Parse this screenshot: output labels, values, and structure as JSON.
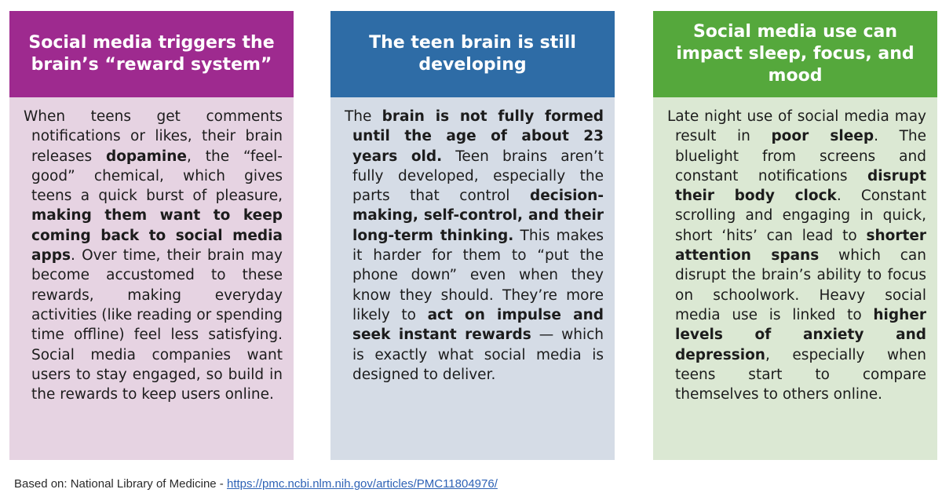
{
  "panels": [
    {
      "title": "Social media triggers the brain’s “reward system”",
      "header_color": "#9e2a8f",
      "body_color": "#e6d3e2",
      "segments": [
        {
          "text": "When teens get comments notifications or likes, their brain releases ",
          "bold": false
        },
        {
          "text": "dopamine",
          "bold": true
        },
        {
          "text": ", the “feel-good” chemical, which gives teens a quick burst of pleasure, ",
          "bold": false
        },
        {
          "text": "making them want to keep coming back to social media apps",
          "bold": true
        },
        {
          "text": ". Over time, their brain may become accustomed to these rewards, making everyday activities (like reading or spending time offline) feel less satisfying. Social media companies want users to stay engaged, so build in the rewards to keep users online.",
          "bold": false
        }
      ]
    },
    {
      "title": "The teen brain is still developing",
      "header_color": "#2e6ca6",
      "body_color": "#d5dce6",
      "segments": [
        {
          "text": "The ",
          "bold": false
        },
        {
          "text": "brain is not fully formed until the age of about 23 years old.",
          "bold": true
        },
        {
          "text": " Teen brains aren’t fully developed, especially the parts that control ",
          "bold": false
        },
        {
          "text": "decision-making, self-control, and their long-term thinking.",
          "bold": true
        },
        {
          "text": " This makes it harder for them to “put the phone down” even when they know they should. They’re more likely to ",
          "bold": false
        },
        {
          "text": "act on impulse and seek instant rewards",
          "bold": true
        },
        {
          "text": " — which is exactly what social media is designed to deliver.",
          "bold": false
        }
      ]
    },
    {
      "title": "Social media use can impact sleep, focus, and mood",
      "header_color": "#55a83c",
      "body_color": "#dbe8d3",
      "segments": [
        {
          "text": "Late night use of social media may result in ",
          "bold": false
        },
        {
          "text": "poor sleep",
          "bold": true
        },
        {
          "text": ". The bluelight from screens and constant notifications ",
          "bold": false
        },
        {
          "text": "disrupt their body clock",
          "bold": true
        },
        {
          "text": ". Constant scrolling and engaging in quick, short ‘hits’ can lead to ",
          "bold": false
        },
        {
          "text": "shorter attention spans",
          "bold": true
        },
        {
          "text": " which can disrupt the brain’s ability to focus on schoolwork. Heavy social media use is linked to ",
          "bold": false
        },
        {
          "text": "higher levels of anxiety and depression",
          "bold": true
        },
        {
          "text": ", especially when teens start to compare themselves to others online.",
          "bold": false
        }
      ]
    }
  ],
  "footer": {
    "prefix": "Based on: National Library of Medicine - ",
    "link_text": "https://pmc.ncbi.nlm.nih.gov/articles/PMC11804976/"
  }
}
